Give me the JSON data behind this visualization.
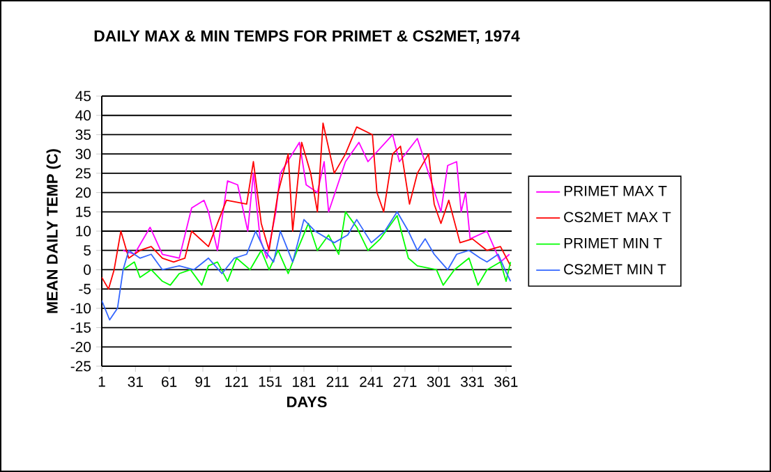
{
  "chart_data": {
    "type": "line",
    "title": "DAILY MAX & MIN TEMPS FOR PRIMET & CS2MET, 1974",
    "xlabel": "DAYS",
    "ylabel": "MEAN DAILY TEMP (C)",
    "xlim": [
      1,
      366
    ],
    "xticks": [
      1,
      31,
      61,
      91,
      121,
      151,
      181,
      211,
      241,
      271,
      301,
      331,
      361
    ],
    "ylim": [
      -25,
      45
    ],
    "yticks": [
      -25,
      -20,
      -15,
      -10,
      -5,
      0,
      5,
      10,
      15,
      20,
      25,
      30,
      35,
      40,
      45
    ],
    "grid": "y",
    "legend": "right",
    "marker": "none",
    "line_style": "solid",
    "series": [
      {
        "name": "PRIMET MAX T",
        "color": "#ff00ff",
        "x": [
          20,
          30,
          44,
          55,
          70,
          81,
          92,
          96,
          104,
          113,
          122,
          131,
          136,
          142,
          148,
          156,
          160,
          177,
          183,
          193,
          199,
          203,
          218,
          230,
          238,
          260,
          266,
          282,
          292,
          303,
          309,
          317,
          321,
          325,
          329,
          344,
          356,
          364
        ],
        "values": [
          5,
          4,
          11,
          4,
          3,
          16,
          18,
          15,
          5,
          23,
          22,
          10,
          25,
          8,
          3,
          15,
          25,
          33,
          22,
          20,
          28,
          15,
          28,
          33,
          28,
          35,
          28,
          34,
          25,
          15,
          27,
          28,
          15,
          20,
          8,
          10,
          2,
          4
        ]
      },
      {
        "name": "CS2MET MAX T",
        "color": "#ff0000",
        "x": [
          1,
          7,
          12,
          18,
          25,
          35,
          45,
          55,
          65,
          75,
          81,
          96,
          112,
          130,
          136,
          143,
          150,
          158,
          167,
          171,
          179,
          187,
          193,
          198,
          208,
          218,
          228,
          242,
          246,
          252,
          260,
          267,
          275,
          282,
          292,
          297,
          303,
          310,
          320,
          331,
          344,
          356,
          365
        ],
        "values": [
          -2,
          -5,
          0,
          10,
          3,
          5,
          6,
          3,
          2,
          3,
          10,
          6,
          18,
          17,
          28,
          12,
          5,
          20,
          30,
          10,
          33,
          25,
          15,
          38,
          25,
          30,
          37,
          35,
          20,
          15,
          30,
          32,
          17,
          25,
          30,
          17,
          12,
          18,
          7,
          8,
          5,
          6,
          1
        ]
      },
      {
        "name": "PRIMET MIN T",
        "color": "#00ff00",
        "x": [
          20,
          30,
          35,
          45,
          55,
          62,
          70,
          80,
          90,
          96,
          104,
          113,
          121,
          133,
          143,
          150,
          158,
          167,
          175,
          185,
          193,
          203,
          212,
          218,
          228,
          238,
          249,
          264,
          274,
          282,
          299,
          305,
          315,
          328,
          336,
          344,
          356,
          361,
          365
        ],
        "values": [
          0,
          2,
          -2,
          0,
          -3,
          -4,
          -1,
          0,
          -4,
          1,
          2,
          -3,
          3,
          0,
          5,
          0,
          5,
          -1,
          5,
          12,
          5,
          9,
          4,
          15,
          11,
          5,
          8,
          14,
          3,
          1,
          0,
          -4,
          0,
          3,
          -4,
          0,
          2,
          -3,
          2
        ]
      },
      {
        "name": "CS2MET MIN T",
        "color": "#3366ff",
        "x": [
          1,
          8,
          15,
          20,
          25,
          35,
          45,
          55,
          70,
          83,
          96,
          108,
          119,
          130,
          138,
          146,
          154,
          160,
          171,
          181,
          191,
          208,
          220,
          228,
          241,
          253,
          264,
          274,
          282,
          289,
          297,
          303,
          309,
          317,
          328,
          338,
          344,
          354,
          360,
          365
        ],
        "values": [
          -8,
          -13,
          -10,
          0,
          5,
          3,
          4,
          0,
          1,
          0,
          3,
          -1,
          3,
          4,
          10,
          5,
          2,
          10,
          2,
          13,
          10,
          7,
          9,
          13,
          7,
          10,
          15,
          10,
          5,
          8,
          4,
          2,
          0,
          4,
          5,
          3,
          2,
          4,
          0,
          -3
        ]
      }
    ]
  }
}
